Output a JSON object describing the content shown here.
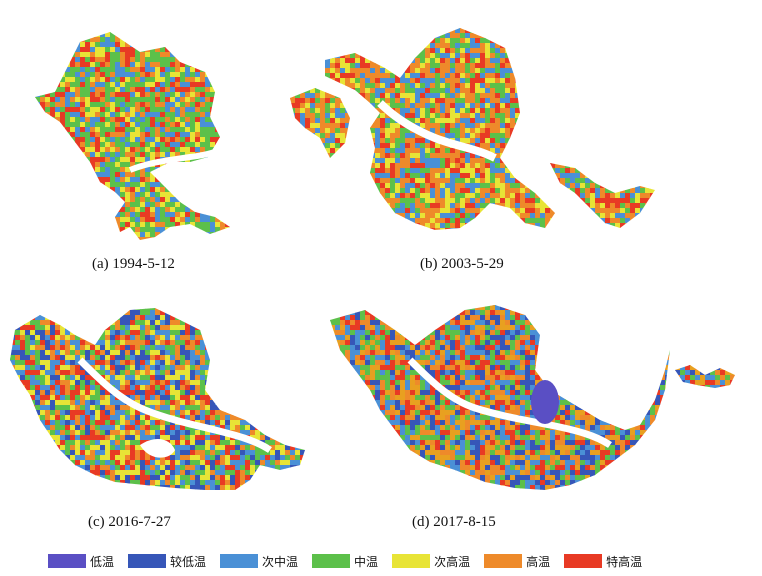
{
  "panels": [
    {
      "id": "a",
      "caption": "(a) 1994-5-12"
    },
    {
      "id": "b",
      "caption": "(b) 2003-5-29"
    },
    {
      "id": "c",
      "caption": "(c) 2016-7-27"
    },
    {
      "id": "d",
      "caption": "(d) 2017-8-15"
    }
  ],
  "legend": [
    {
      "label": "低温",
      "color": "#5a4fc4"
    },
    {
      "label": "较低温",
      "color": "#3656b8"
    },
    {
      "label": "次中温",
      "color": "#4a90d6"
    },
    {
      "label": "中温",
      "color": "#5cc04a"
    },
    {
      "label": "次高温",
      "color": "#e8e436"
    },
    {
      "label": "高温",
      "color": "#ee8a2a"
    },
    {
      "label": "特高温",
      "color": "#e83a24"
    }
  ],
  "panel_palettes": {
    "a": [
      "#5cc04a",
      "#5cc04a",
      "#e83a24",
      "#ee8a2a",
      "#e8e436",
      "#4a90d6"
    ],
    "b": [
      "#ee8a2a",
      "#e83a24",
      "#e8e436",
      "#5cc04a",
      "#4a90d6",
      "#ee8a2a"
    ],
    "c": [
      "#ee8a2a",
      "#e83a24",
      "#4a90d6",
      "#5cc04a",
      "#e8e436",
      "#3656b8"
    ],
    "d": [
      "#ee8a2a",
      "#e8a020",
      "#4a90d6",
      "#3656b8",
      "#e83a24",
      "#5cc04a"
    ]
  }
}
